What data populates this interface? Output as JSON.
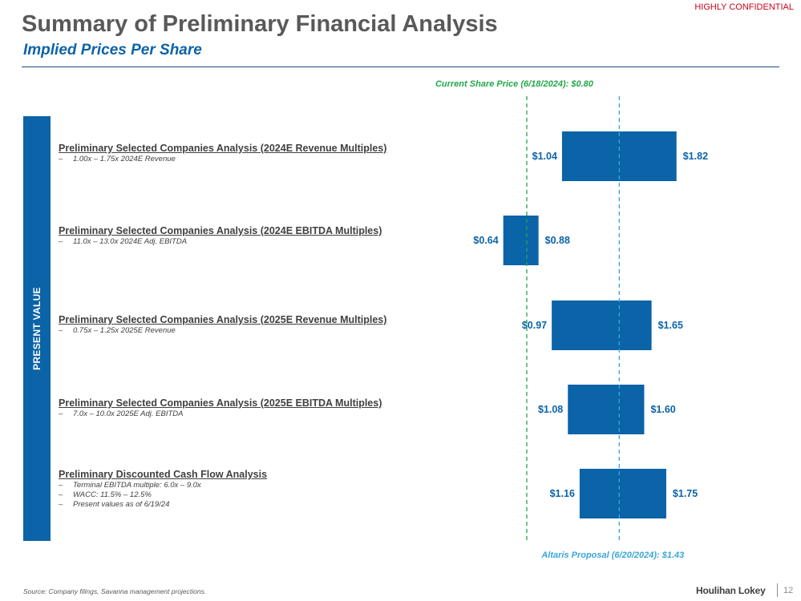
{
  "header": {
    "confidential": "HIGHLY CONFIDENTIAL",
    "title": "Summary of Preliminary Financial Analysis",
    "subtitle": "Implied Prices Per Share"
  },
  "side_label": "PRESENT VALUE",
  "methods": [
    {
      "title": "Preliminary Selected Companies Analysis (2024E Revenue Multiples)",
      "details": [
        "1.00x – 1.75x 2024E Revenue"
      ]
    },
    {
      "title": "Preliminary Selected Companies Analysis (2024E EBITDA Multiples)",
      "details": [
        "11.0x – 13.0x 2024E Adj. EBITDA"
      ]
    },
    {
      "title": "Preliminary Selected Companies Analysis (2025E Revenue Multiples)",
      "details": [
        "0.75x – 1.25x 2025E Revenue"
      ]
    },
    {
      "title": "Preliminary Selected Companies Analysis (2025E EBITDA Multiples)",
      "details": [
        "7.0x – 10.0x 2025E Adj. EBITDA"
      ]
    },
    {
      "title": "Preliminary Discounted Cash Flow Analysis",
      "details": [
        "Terminal EBITDA multiple: 6.0x – 9.0x",
        "WACC: 11.5% – 12.5%",
        "Present values as of 6/19/24"
      ]
    }
  ],
  "detail_dash": "–",
  "chart_data": {
    "type": "bar",
    "orientation": "horizontal-range",
    "categories": [
      "Preliminary Selected Companies Analysis (2024E Revenue Multiples)",
      "Preliminary Selected Companies Analysis (2024E EBITDA Multiples)",
      "Preliminary Selected Companies Analysis (2025E Revenue Multiples)",
      "Preliminary Selected Companies Analysis (2025E EBITDA Multiples)",
      "Preliminary Discounted Cash Flow Analysis"
    ],
    "series": [
      {
        "name": "Implied price range",
        "low": [
          1.04,
          0.64,
          0.97,
          1.08,
          1.16
        ],
        "high": [
          1.82,
          0.88,
          1.65,
          1.6,
          1.75
        ]
      }
    ],
    "low_labels": [
      "$1.04",
      "$0.64",
      "$0.97",
      "$1.08",
      "$1.16"
    ],
    "high_labels": [
      "$1.82",
      "$0.88",
      "$1.65",
      "$1.60",
      "$1.75"
    ],
    "xlim": [
      0.0,
      2.0
    ],
    "reference_lines": [
      {
        "name": "current",
        "value": 0.8,
        "label": "Current Share Price (6/18/2024): $0.80",
        "color": "#22a84a"
      },
      {
        "name": "proposal",
        "value": 1.43,
        "label": "Altaris Proposal (6/20/2024): $1.43",
        "color": "#3aa6d8"
      }
    ],
    "bar_color": "#0b63a8",
    "grid": false,
    "title": "",
    "xlabel": "",
    "ylabel": ""
  },
  "footer": {
    "source": "Source: Company filings, Savanna management projections.",
    "logo": "Houlihan Lokey",
    "page": "12"
  }
}
